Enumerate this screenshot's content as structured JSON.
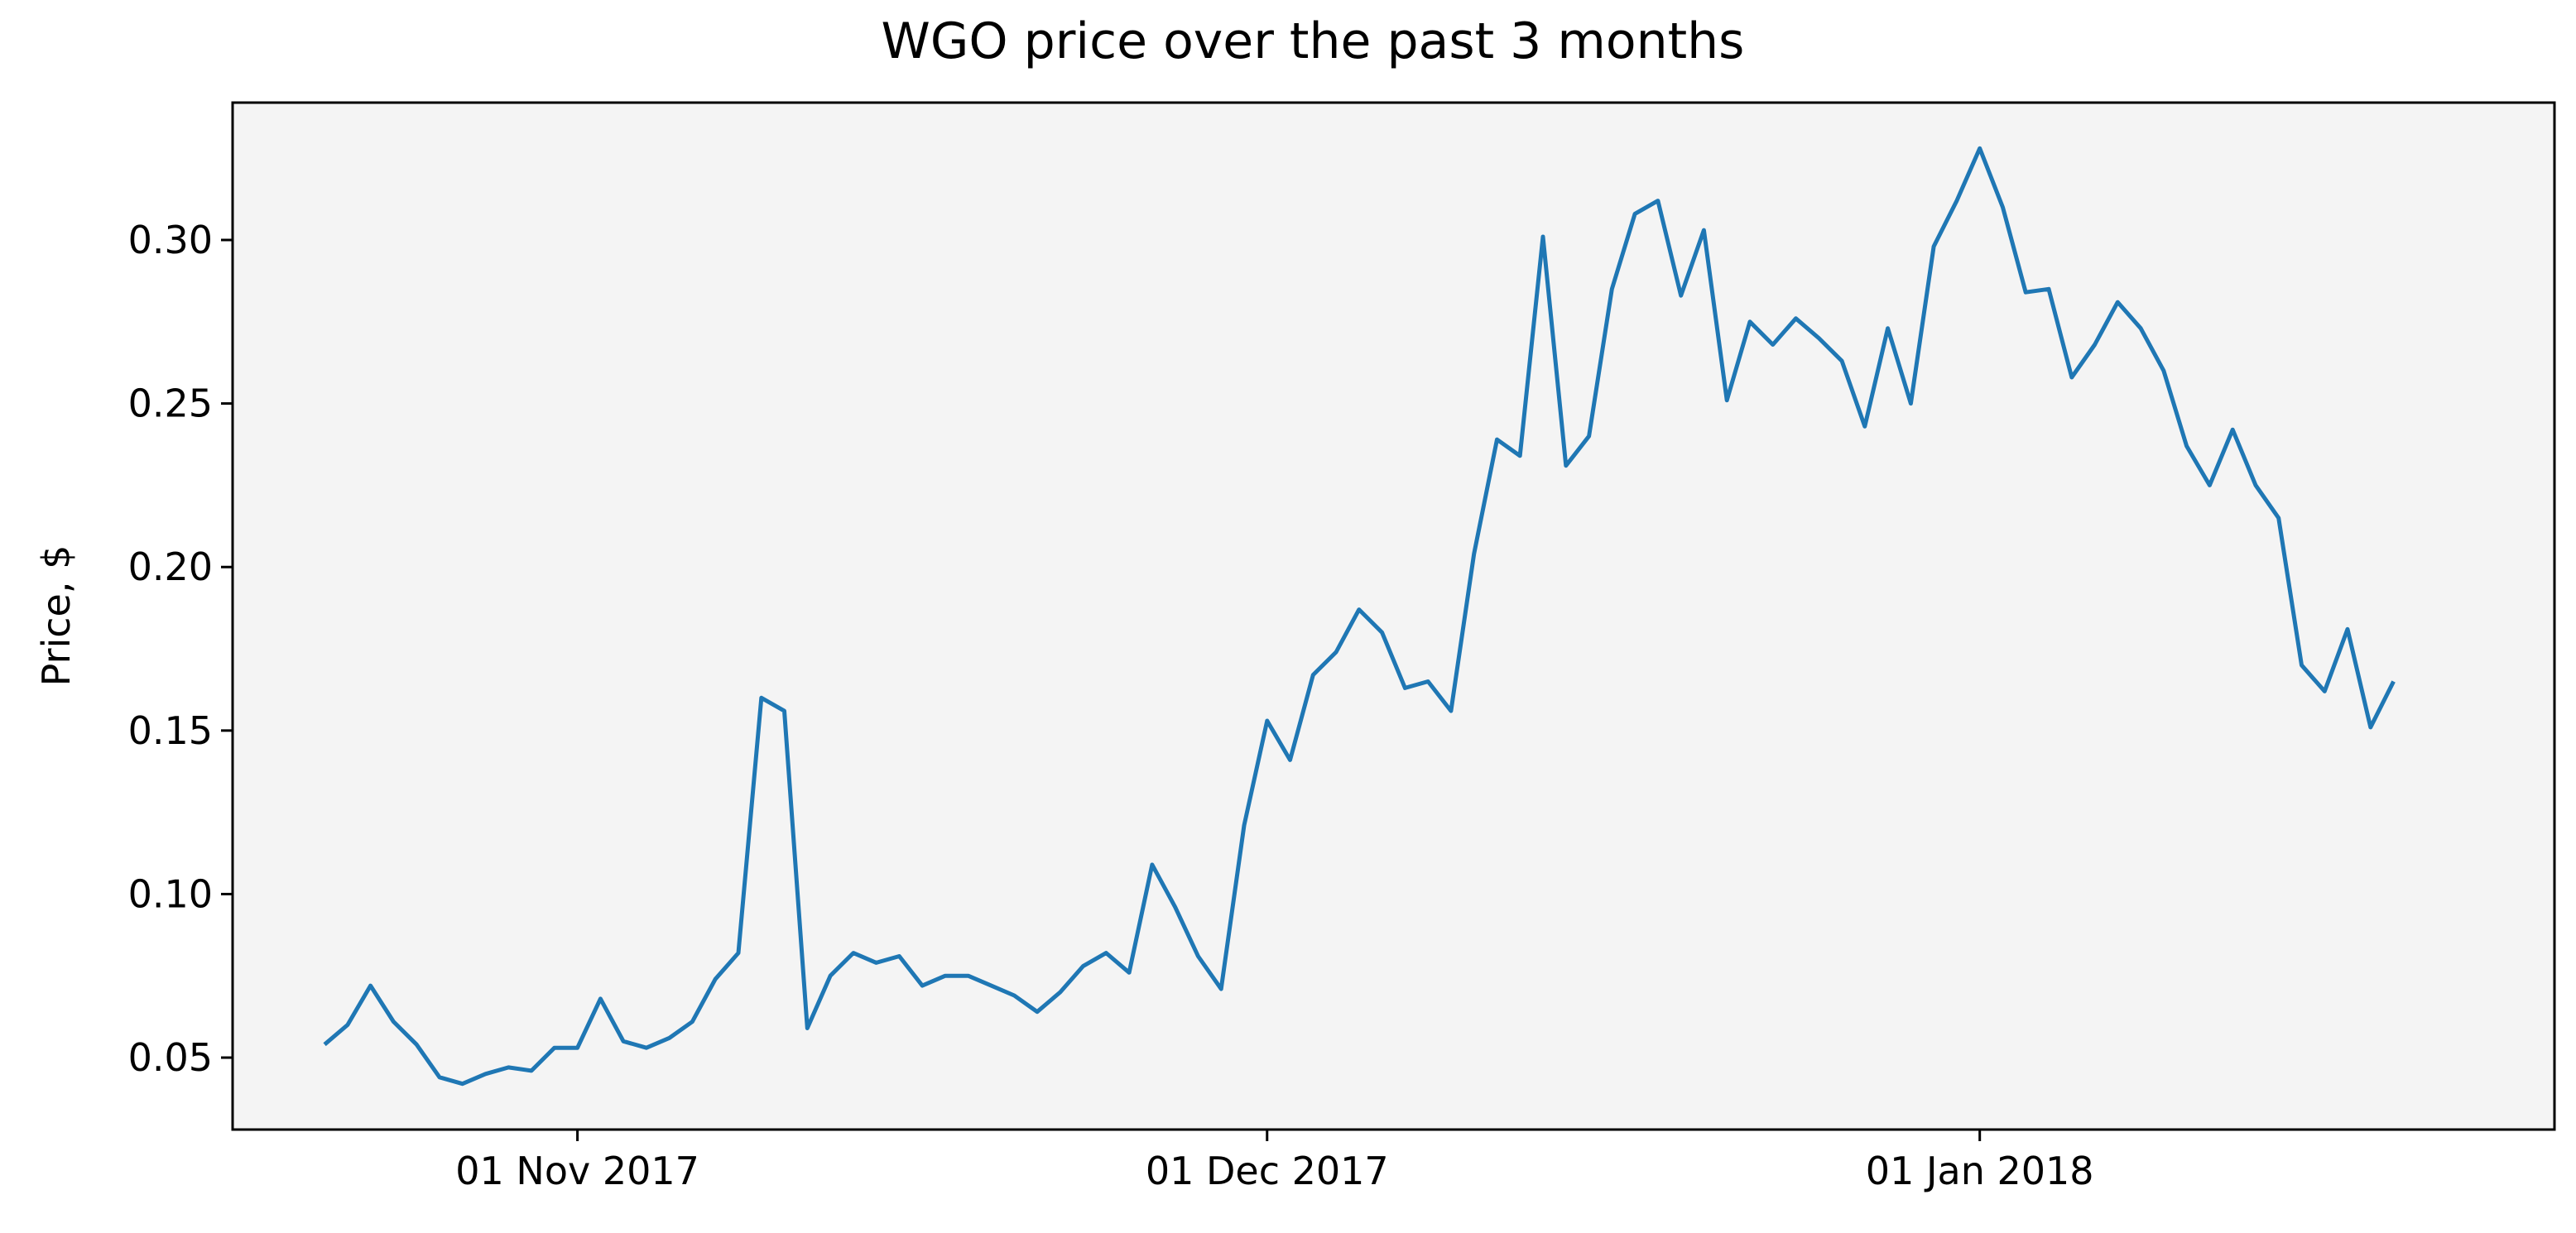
{
  "chart_data": {
    "type": "line",
    "title": "WGO price over the past 3 months",
    "xlabel": "",
    "ylabel": "Price, $",
    "ylim": [
      0.028,
      0.342
    ],
    "xlim": [
      "2017-10-17",
      "2018-01-26"
    ],
    "grid": false,
    "plot_background": "#f4f4f4",
    "line_color": "#1f77b4",
    "x_ticks": [
      {
        "date": "2017-11-01",
        "label": "01 Nov 2017"
      },
      {
        "date": "2017-12-01",
        "label": "01 Dec 2017"
      },
      {
        "date": "2018-01-01",
        "label": "01 Jan 2018"
      }
    ],
    "y_ticks": [
      {
        "value": 0.05,
        "label": "0.05"
      },
      {
        "value": 0.1,
        "label": "0.10"
      },
      {
        "value": 0.15,
        "label": "0.15"
      },
      {
        "value": 0.2,
        "label": "0.20"
      },
      {
        "value": 0.25,
        "label": "0.25"
      },
      {
        "value": 0.3,
        "label": "0.30"
      }
    ],
    "series": [
      {
        "start_date": "2017-10-21",
        "values": [
          0.054,
          0.06,
          0.072,
          0.061,
          0.054,
          0.044,
          0.042,
          0.045,
          0.047,
          0.046,
          0.053,
          0.053,
          0.068,
          0.055,
          0.053,
          0.056,
          0.061,
          0.074,
          0.082,
          0.16,
          0.156,
          0.059,
          0.075,
          0.082,
          0.079,
          0.081,
          0.072,
          0.075,
          0.075,
          0.072,
          0.069,
          0.064,
          0.07,
          0.078,
          0.082,
          0.076,
          0.109,
          0.096,
          0.081,
          0.071,
          0.121,
          0.153,
          0.141,
          0.167,
          0.174,
          0.187,
          0.18,
          0.163,
          0.165,
          0.156,
          0.204,
          0.239,
          0.234,
          0.301,
          0.231,
          0.24,
          0.285,
          0.308,
          0.312,
          0.283,
          0.303,
          0.251,
          0.275,
          0.268,
          0.276,
          0.27,
          0.263,
          0.243,
          0.273,
          0.25,
          0.298,
          0.312,
          0.328,
          0.31,
          0.284,
          0.285,
          0.258,
          0.268,
          0.281,
          0.273,
          0.26,
          0.237,
          0.225,
          0.242,
          0.225,
          0.215,
          0.17,
          0.162,
          0.181,
          0.151,
          0.165
        ]
      }
    ]
  }
}
